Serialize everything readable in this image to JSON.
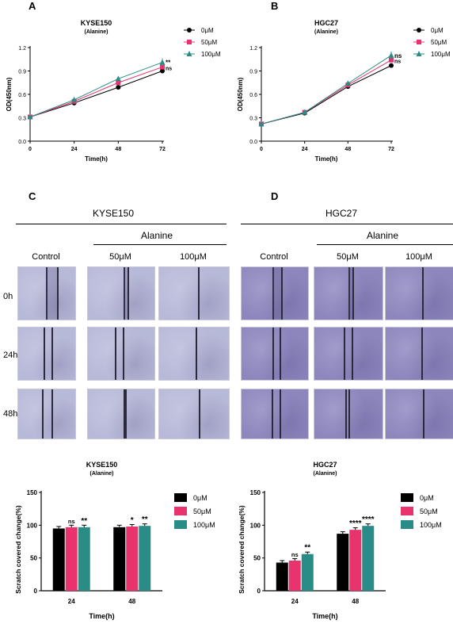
{
  "panels": {
    "A": {
      "letter": "A",
      "title": "KYSE150",
      "subtitle": "(Alanine)"
    },
    "B": {
      "letter": "B",
      "title": "HGC27",
      "subtitle": "(Alanine)"
    },
    "C": {
      "letter": "C",
      "cell_line": "KYSE150",
      "treatment": "Alanine"
    },
    "D": {
      "letter": "D",
      "cell_line": "HGC27",
      "treatment": "Alanine"
    }
  },
  "colors": {
    "0uM": "#000000",
    "50uM": "#e8336d",
    "100uM": "#2a8c86",
    "kyse_micro": "#b7b9d8",
    "hgc_micro": "#8c86bd"
  },
  "wound_images": {
    "columns": [
      "Control",
      "50μM",
      "100μM"
    ],
    "rows": [
      "0h",
      "24h",
      "48h"
    ]
  },
  "chart_data": [
    {
      "type": "line",
      "title": "KYSE150",
      "subtitle": "(Alanine)",
      "xlabel": "Time(h)",
      "ylabel": "OD(450nm)",
      "x": [
        0,
        24,
        48,
        72
      ],
      "xlim": [
        0,
        72
      ],
      "ylim": [
        0.0,
        1.2
      ],
      "yticks": [
        "0.0",
        "0.3",
        "0.6",
        "0.9",
        "1.2"
      ],
      "xticks": [
        "0",
        "24",
        "48",
        "72"
      ],
      "series": [
        {
          "name": "0μM",
          "values": [
            0.31,
            0.49,
            0.69,
            0.9
          ],
          "marker": "circle"
        },
        {
          "name": "50μM",
          "values": [
            0.31,
            0.51,
            0.75,
            0.95
          ],
          "marker": "square"
        },
        {
          "name": "100μM",
          "values": [
            0.31,
            0.53,
            0.8,
            1.01
          ],
          "marker": "triangle"
        }
      ],
      "annotations": [
        "**",
        "ns"
      ],
      "legend": "right"
    },
    {
      "type": "line",
      "title": "HGC27",
      "subtitle": "(Alanine)",
      "xlabel": "Time(h)",
      "ylabel": "OD(450nm)",
      "x": [
        0,
        24,
        48,
        72
      ],
      "xlim": [
        0,
        72
      ],
      "ylim": [
        0.0,
        1.2
      ],
      "yticks": [
        "0.0",
        "0.3",
        "0.6",
        "0.9",
        "1.2"
      ],
      "xticks": [
        "0",
        "24",
        "48",
        "72"
      ],
      "series": [
        {
          "name": "0μM",
          "values": [
            0.22,
            0.36,
            0.7,
            0.97
          ],
          "marker": "circle"
        },
        {
          "name": "50μM",
          "values": [
            0.22,
            0.37,
            0.72,
            1.04
          ],
          "marker": "square"
        },
        {
          "name": "100μM",
          "values": [
            0.22,
            0.37,
            0.74,
            1.1
          ],
          "marker": "triangle"
        }
      ],
      "annotations": [
        "ns",
        "ns"
      ],
      "legend": "right"
    },
    {
      "type": "bar",
      "title": "KYSE150",
      "subtitle": "(Alanine)",
      "xlabel": "Time(h)",
      "ylabel": "Scratch covered change(%)",
      "categories": [
        "24",
        "48"
      ],
      "ylim": [
        0,
        150
      ],
      "yticks": [
        "0",
        "50",
        "100",
        "150"
      ],
      "series": [
        {
          "name": "0μM",
          "values": [
            95,
            97
          ]
        },
        {
          "name": "50μM",
          "values": [
            97,
            98
          ]
        },
        {
          "name": "100μM",
          "values": [
            97,
            99
          ]
        }
      ],
      "significance": [
        [
          "",
          "ns",
          "**"
        ],
        [
          "",
          "*",
          "**"
        ]
      ],
      "legend": "right"
    },
    {
      "type": "bar",
      "title": "HGC27",
      "subtitle": "(Alanine)",
      "xlabel": "Time(h)",
      "ylabel": "Scratch covered change(%)",
      "categories": [
        "24",
        "48"
      ],
      "ylim": [
        0,
        150
      ],
      "yticks": [
        "0",
        "50",
        "100",
        "150"
      ],
      "series": [
        {
          "name": "0μM",
          "values": [
            43,
            87
          ]
        },
        {
          "name": "50μM",
          "values": [
            46,
            93
          ]
        },
        {
          "name": "100μM",
          "values": [
            56,
            99
          ]
        }
      ],
      "significance": [
        [
          "",
          "ns",
          "**"
        ],
        [
          "",
          "****",
          "****"
        ]
      ],
      "legend": "right"
    }
  ]
}
